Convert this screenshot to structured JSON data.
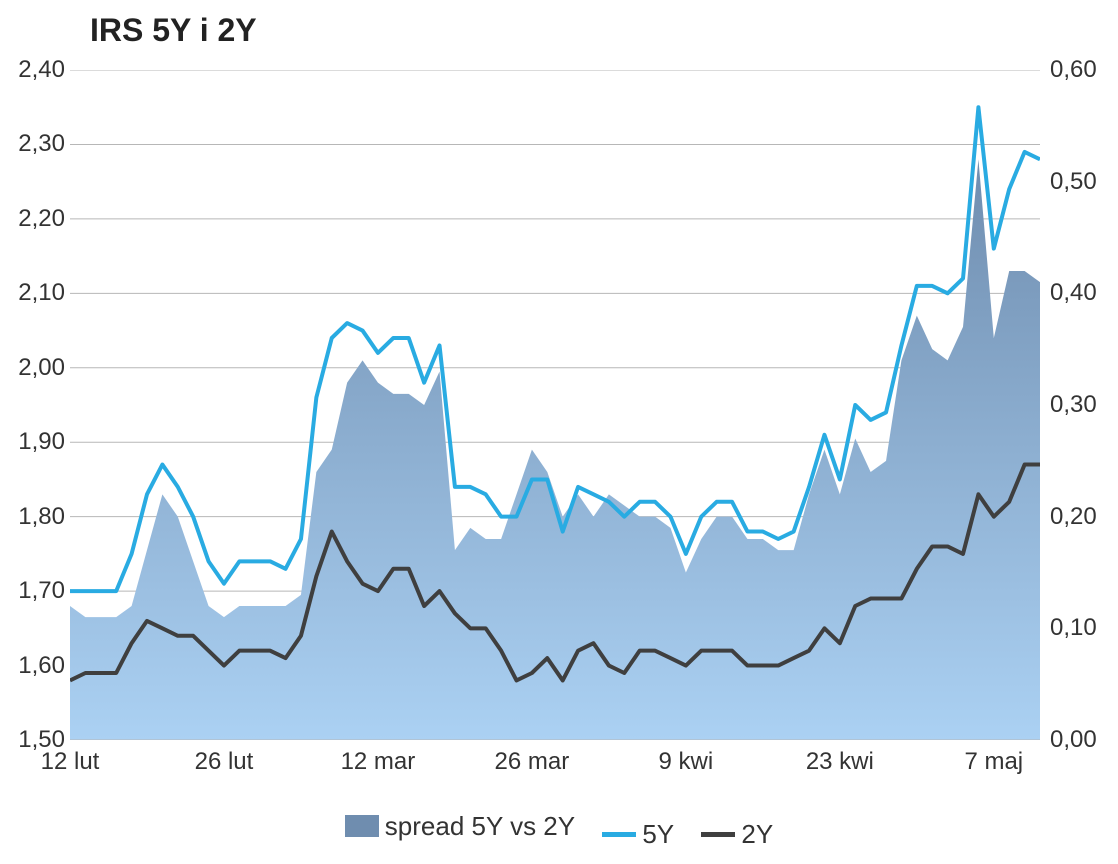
{
  "chart": {
    "type": "line-with-area-dual-axis",
    "title": "IRS 5Y i 2Y",
    "title_fontsize": 32,
    "font_family": "Verdana",
    "background_color": "#ffffff",
    "grid_color": "#b7b7b7",
    "grid_width": 1,
    "plot_border_color": "#b7b7b7",
    "y_left": {
      "min": 1.5,
      "max": 2.4,
      "step": 0.1,
      "ticks": [
        "1,50",
        "1,60",
        "1,70",
        "1,80",
        "1,90",
        "2,00",
        "2,10",
        "2,20",
        "2,30",
        "2,40"
      ],
      "label_fontsize": 24
    },
    "y_right": {
      "min": 0.0,
      "max": 0.6,
      "step": 0.1,
      "ticks": [
        "0,00",
        "0,10",
        "0,20",
        "0,30",
        "0,40",
        "0,50",
        "0,60"
      ],
      "label_fontsize": 24
    },
    "x_axis": {
      "count": 64,
      "tick_positions": [
        0,
        10,
        20,
        30,
        40,
        50,
        60
      ],
      "tick_labels": [
        "12 lut",
        "26 lut",
        "12 mar",
        "26 mar",
        "9 kwi",
        "23 kwi",
        "7 maj"
      ],
      "label_fontsize": 24
    },
    "legend": {
      "items": [
        {
          "label": "spread 5Y vs 2Y",
          "type": "area",
          "color": "#6f8daf"
        },
        {
          "label": "5Y",
          "type": "line",
          "color": "#29abe2"
        },
        {
          "label": "2Y",
          "type": "line",
          "color": "#3f3f3f"
        }
      ],
      "fontsize": 26
    },
    "series": {
      "line_5y": {
        "axis": "left",
        "color": "#29abe2",
        "width": 4,
        "values": [
          1.7,
          1.7,
          1.7,
          1.7,
          1.75,
          1.83,
          1.87,
          1.84,
          1.8,
          1.74,
          1.71,
          1.74,
          1.74,
          1.74,
          1.73,
          1.77,
          1.96,
          2.04,
          2.06,
          2.05,
          2.02,
          2.04,
          2.04,
          1.98,
          2.03,
          1.84,
          1.84,
          1.83,
          1.8,
          1.8,
          1.85,
          1.85,
          1.78,
          1.84,
          1.83,
          1.82,
          1.8,
          1.82,
          1.82,
          1.8,
          1.75,
          1.8,
          1.82,
          1.82,
          1.78,
          1.78,
          1.77,
          1.78,
          1.84,
          1.91,
          1.85,
          1.95,
          1.93,
          1.94,
          2.03,
          2.11,
          2.11,
          2.1,
          2.12,
          2.35,
          2.16,
          2.24,
          2.29,
          2.28
        ]
      },
      "line_2y": {
        "axis": "left",
        "color": "#3f3f3f",
        "width": 4,
        "values": [
          1.58,
          1.59,
          1.59,
          1.59,
          1.63,
          1.66,
          1.65,
          1.64,
          1.64,
          1.62,
          1.6,
          1.62,
          1.62,
          1.62,
          1.61,
          1.64,
          1.72,
          1.78,
          1.74,
          1.71,
          1.7,
          1.73,
          1.73,
          1.68,
          1.7,
          1.67,
          1.65,
          1.65,
          1.62,
          1.58,
          1.59,
          1.61,
          1.58,
          1.62,
          1.63,
          1.6,
          1.59,
          1.62,
          1.62,
          1.61,
          1.6,
          1.62,
          1.62,
          1.62,
          1.6,
          1.6,
          1.6,
          1.61,
          1.62,
          1.65,
          1.63,
          1.68,
          1.69,
          1.69,
          1.69,
          1.73,
          1.76,
          1.76,
          1.75,
          1.83,
          1.8,
          1.82,
          1.87,
          1.87
        ]
      },
      "spread_area": {
        "axis": "right",
        "base_color": "#a4cdf1",
        "gradient_top": "#6f8daf",
        "gradient_bottom": "#abd1f3",
        "values": [
          0.12,
          0.11,
          0.11,
          0.11,
          0.12,
          0.17,
          0.22,
          0.2,
          0.16,
          0.12,
          0.11,
          0.12,
          0.12,
          0.12,
          0.12,
          0.13,
          0.24,
          0.26,
          0.32,
          0.34,
          0.32,
          0.31,
          0.31,
          0.3,
          0.33,
          0.17,
          0.19,
          0.18,
          0.18,
          0.22,
          0.26,
          0.24,
          0.2,
          0.22,
          0.2,
          0.22,
          0.21,
          0.2,
          0.2,
          0.19,
          0.15,
          0.18,
          0.2,
          0.2,
          0.18,
          0.18,
          0.17,
          0.17,
          0.22,
          0.26,
          0.22,
          0.27,
          0.24,
          0.25,
          0.34,
          0.38,
          0.35,
          0.34,
          0.37,
          0.52,
          0.36,
          0.42,
          0.42,
          0.41
        ]
      }
    }
  }
}
